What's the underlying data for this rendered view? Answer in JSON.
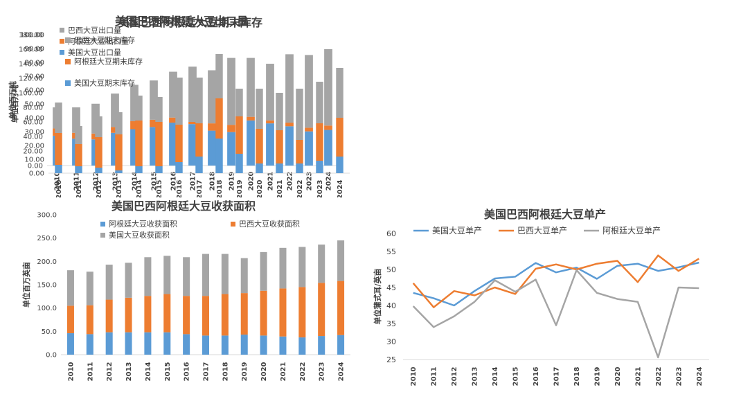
{
  "colors": {
    "usa": "#5b9bd5",
    "brazil_orange": "#ed7d31",
    "gray": "#a5a5a5",
    "axis": "#d9d9d9",
    "text": "#404040"
  },
  "chart_data": [
    {
      "id": "exports",
      "type": "bar",
      "stacked": true,
      "title": "美国巴西阿根廷大豆出口量",
      "ylabel": "单位百万吨",
      "ylim": [
        0,
        180
      ],
      "yticks": [
        "0.00",
        "20.00",
        "40.00",
        "60.00",
        "80.00",
        "100.00",
        "120.00",
        "140.00",
        "160.00",
        "180.00"
      ],
      "categories": [
        "2010",
        "2011",
        "2012",
        "2013",
        "2014",
        "2015",
        "2016",
        "2017",
        "2018",
        "2019",
        "2020",
        "2021",
        "2022",
        "2023",
        "2024"
      ],
      "series": [
        {
          "name": "美国大豆出口量",
          "color": "#5b9bd5",
          "values": [
            41,
            37,
            36,
            45,
            50,
            53,
            59,
            57,
            48,
            46,
            62,
            58,
            54,
            47,
            49
          ]
        },
        {
          "name": "阿根廷大豆出口量",
          "color": "#ed7d31",
          "values": [
            10,
            8,
            8,
            8,
            11,
            10,
            7,
            3,
            10,
            10,
            5,
            4,
            5,
            5,
            6
          ]
        },
        {
          "name": "巴西大豆出口量",
          "color": "#a5a5a5",
          "values": [
            29,
            35,
            41,
            46,
            50,
            54,
            63,
            76,
            73,
            92,
            81,
            78,
            94,
            100,
            105
          ]
        }
      ],
      "legend_order": [
        "巴西大豆出口量",
        "阿根廷大豆出口量",
        "美国大豆出口量"
      ]
    },
    {
      "id": "stocks",
      "type": "bar",
      "stacked": true,
      "title": "美国巴西阿根廷大豆期末库存",
      "ylabel": "单位百万吨",
      "ylim": [
        0,
        100
      ],
      "yticks": [
        "0.00",
        "10.00",
        "20.00",
        "30.00",
        "40.00",
        "50.00",
        "60.00",
        "70.00",
        "80.00",
        "90.00",
        "100.00"
      ],
      "categories": [
        "2010",
        "2011",
        "2012",
        "2013",
        "2014",
        "2015",
        "2016",
        "2017",
        "2018",
        "2019",
        "2020",
        "2021",
        "2022",
        "2023",
        "2024"
      ],
      "series": [
        {
          "name": "美国大豆期末库存",
          "color": "#5b9bd5",
          "values": [
            6,
            5,
            4,
            2,
            5,
            5,
            8,
            12,
            25,
            14,
            7,
            7,
            7,
            9,
            12
          ]
        },
        {
          "name": "阿根廷大豆期末库存",
          "color": "#ed7d31",
          "values": [
            23,
            16,
            22,
            26,
            33,
            32,
            27,
            24,
            29,
            27,
            25,
            24,
            17,
            27,
            28
          ]
        },
        {
          "name": "巴西大豆期末库存",
          "color": "#a5a5a5",
          "values": [
            22,
            13,
            15,
            16,
            18,
            18,
            34,
            33,
            32,
            20,
            29,
            27,
            37,
            30,
            36
          ]
        }
      ],
      "legend_order": [
        "巴西大豆期末库存",
        "阿根廷大豆期末库存",
        "美国大豆期末库存"
      ]
    },
    {
      "id": "area",
      "type": "bar",
      "stacked": true,
      "title": "美国巴西阿根廷大豆收获面积",
      "ylabel": "单位百万英亩",
      "ylim": [
        0,
        300
      ],
      "yticks": [
        "0.0",
        "50.0",
        "100.0",
        "150.0",
        "200.0",
        "250.0",
        "300.0"
      ],
      "categories": [
        "2010",
        "2011",
        "2012",
        "2013",
        "2014",
        "2015",
        "2016",
        "2017",
        "2018",
        "2019",
        "2020",
        "2021",
        "2022",
        "2023",
        "2024"
      ],
      "series": [
        {
          "name": "阿根廷大豆收获面积",
          "color": "#5b9bd5",
          "values": [
            46,
            44,
            48,
            48,
            48,
            48,
            44,
            41,
            41,
            43,
            41,
            39,
            37,
            40,
            42
          ]
        },
        {
          "name": "巴西大豆收获面积",
          "color": "#ed7d31",
          "values": [
            59,
            62,
            70,
            74,
            78,
            82,
            82,
            85,
            89,
            89,
            96,
            103,
            108,
            114,
            116
          ]
        },
        {
          "name": "美国大豆收获面积",
          "color": "#a5a5a5",
          "values": [
            76,
            72,
            75,
            75,
            83,
            82,
            83,
            90,
            86,
            75,
            83,
            87,
            86,
            82,
            87
          ]
        }
      ],
      "legend_order": [
        "阿根廷大豆收获面积",
        "巴西大豆收获面积",
        "美国大豆收获面积"
      ]
    },
    {
      "id": "yield",
      "type": "line",
      "title": "美国巴西阿根廷大豆单产",
      "ylabel": "单位蒲式耳/英亩",
      "ylim": [
        25,
        60
      ],
      "yticks": [
        "25",
        "30",
        "35",
        "40",
        "45",
        "50",
        "55",
        "60"
      ],
      "categories": [
        "2010",
        "2011",
        "2012",
        "2013",
        "2014",
        "2015",
        "2016",
        "2017",
        "2018",
        "2019",
        "2020",
        "2021",
        "2022",
        "2023",
        "2024"
      ],
      "series": [
        {
          "name": "美国大豆单产",
          "color": "#5b9bd5",
          "values": [
            43.5,
            42,
            40,
            44,
            47.5,
            48,
            51.8,
            49.2,
            50.5,
            47.4,
            51,
            51.6,
            49.6,
            50.6,
            51.9
          ]
        },
        {
          "name": "巴西大豆单产",
          "color": "#ed7d31",
          "values": [
            46.2,
            39.5,
            44,
            42.8,
            45,
            43.2,
            50.2,
            51.4,
            50,
            51.6,
            52.4,
            46.5,
            53.9,
            49.6,
            53
          ]
        },
        {
          "name": "阿根廷大豆单产",
          "color": "#a5a5a5",
          "values": [
            39.8,
            34,
            37,
            41,
            47,
            43.8,
            47.2,
            34.5,
            49.8,
            43.5,
            41.8,
            41,
            25.6,
            45,
            44.8
          ]
        }
      ],
      "legend_order": [
        "美国大豆单产",
        "巴西大豆单产",
        "阿根廷大豆单产"
      ]
    }
  ]
}
